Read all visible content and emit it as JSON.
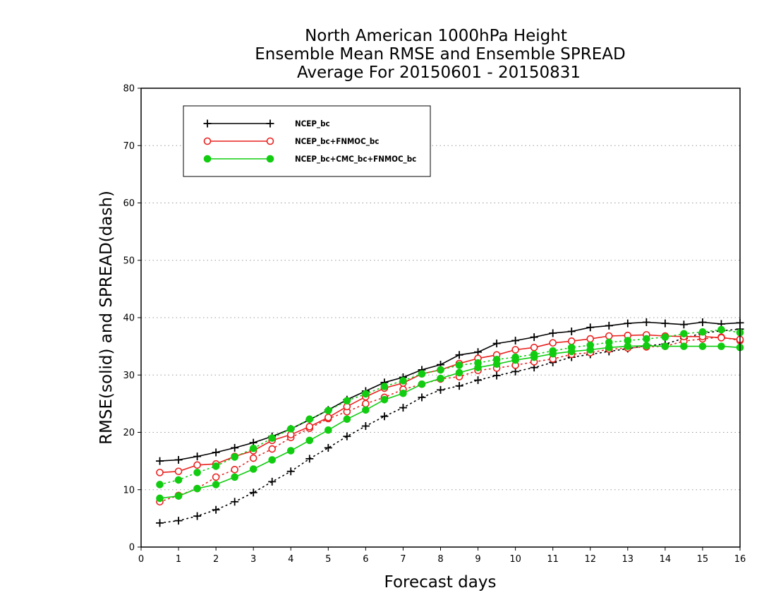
{
  "chart_data": {
    "type": "line",
    "title_lines": [
      "North American 1000hPa Height",
      "Ensemble Mean RMSE and Ensemble SPREAD",
      "Average For 20150601 - 20150831"
    ],
    "xlabel": "Forecast days",
    "ylabel": "RMSE(solid) and SPREAD(dash)",
    "xlim": [
      0,
      16
    ],
    "ylim": [
      0,
      80
    ],
    "xticks": [
      0,
      1,
      2,
      3,
      4,
      5,
      6,
      7,
      8,
      9,
      10,
      11,
      12,
      13,
      14,
      15,
      16
    ],
    "yticks": [
      0,
      10,
      20,
      30,
      40,
      50,
      60,
      70,
      80
    ],
    "grid": "horizontal dotted",
    "legend_position": "top-left",
    "x": [
      0.5,
      1,
      1.5,
      2,
      2.5,
      3,
      3.5,
      4,
      4.5,
      5,
      5.5,
      6,
      6.5,
      7,
      7.5,
      8,
      8.5,
      9,
      9.5,
      10,
      10.5,
      11,
      11.5,
      12,
      12.5,
      13,
      13.5,
      14,
      14.5,
      15,
      15.5,
      16
    ],
    "series": [
      {
        "name": "NCEP_bc",
        "color": "#000000",
        "marker": "plus",
        "rmse": [
          15.0,
          15.2,
          15.8,
          16.5,
          17.3,
          18.2,
          19.3,
          20.6,
          22.2,
          23.9,
          25.7,
          27.2,
          28.7,
          29.6,
          30.9,
          31.8,
          33.5,
          34.0,
          35.5,
          36.0,
          36.6,
          37.3,
          37.6,
          38.3,
          38.6,
          39.0,
          39.2,
          39.0,
          38.8,
          39.2,
          38.9,
          39.1
        ],
        "spread": [
          4.2,
          4.6,
          5.4,
          6.5,
          7.9,
          9.5,
          11.4,
          13.2,
          15.4,
          17.3,
          19.3,
          21.1,
          22.8,
          24.3,
          26.1,
          27.4,
          28.1,
          29.1,
          29.9,
          30.6,
          31.3,
          32.2,
          33.1,
          33.6,
          34.1,
          34.6,
          35.1,
          35.4,
          36.4,
          37.3,
          37.7,
          38.0
        ]
      },
      {
        "name": "NCEP_bc+FNMOC_bc",
        "color": "#e8221f",
        "marker": "open-circle",
        "rmse": [
          13.0,
          13.2,
          14.3,
          14.5,
          15.8,
          16.8,
          18.6,
          19.6,
          21.0,
          22.6,
          24.5,
          26.2,
          27.7,
          28.6,
          30.2,
          30.9,
          32.0,
          32.9,
          33.5,
          34.4,
          34.8,
          35.6,
          35.9,
          36.3,
          36.8,
          36.9,
          37.0,
          36.8,
          36.7,
          36.7,
          36.5,
          36.2
        ],
        "spread": [
          7.9,
          9.0,
          10.2,
          12.2,
          13.5,
          15.5,
          17.1,
          19.1,
          20.7,
          22.4,
          23.6,
          25.0,
          26.1,
          27.5,
          28.4,
          29.3,
          29.7,
          30.8,
          31.2,
          31.7,
          32.3,
          32.8,
          33.6,
          33.9,
          34.5,
          34.7,
          34.9,
          35.0,
          35.9,
          36.3,
          36.6,
          36.0
        ]
      },
      {
        "name": "NCEP_bc+CMC_bc+FNMOC_bc",
        "color": "#11cc11",
        "marker": "filled-circle",
        "rmse": [
          8.5,
          8.9,
          10.2,
          10.9,
          12.2,
          13.6,
          15.2,
          16.8,
          18.6,
          20.4,
          22.3,
          23.9,
          25.7,
          26.8,
          28.4,
          29.4,
          30.4,
          31.3,
          31.9,
          32.6,
          33.1,
          33.7,
          34.1,
          34.4,
          34.8,
          35.0,
          35.1,
          35.0,
          35.0,
          35.0,
          35.0,
          34.8
        ],
        "spread": [
          10.9,
          11.7,
          13.0,
          14.1,
          15.7,
          17.2,
          19.0,
          20.6,
          22.3,
          23.8,
          25.5,
          26.7,
          28.0,
          29.0,
          30.2,
          30.9,
          31.7,
          32.1,
          32.7,
          33.1,
          33.6,
          34.2,
          34.8,
          35.2,
          35.7,
          36.0,
          36.3,
          36.6,
          37.2,
          37.5,
          37.9,
          37.4
        ]
      }
    ]
  }
}
